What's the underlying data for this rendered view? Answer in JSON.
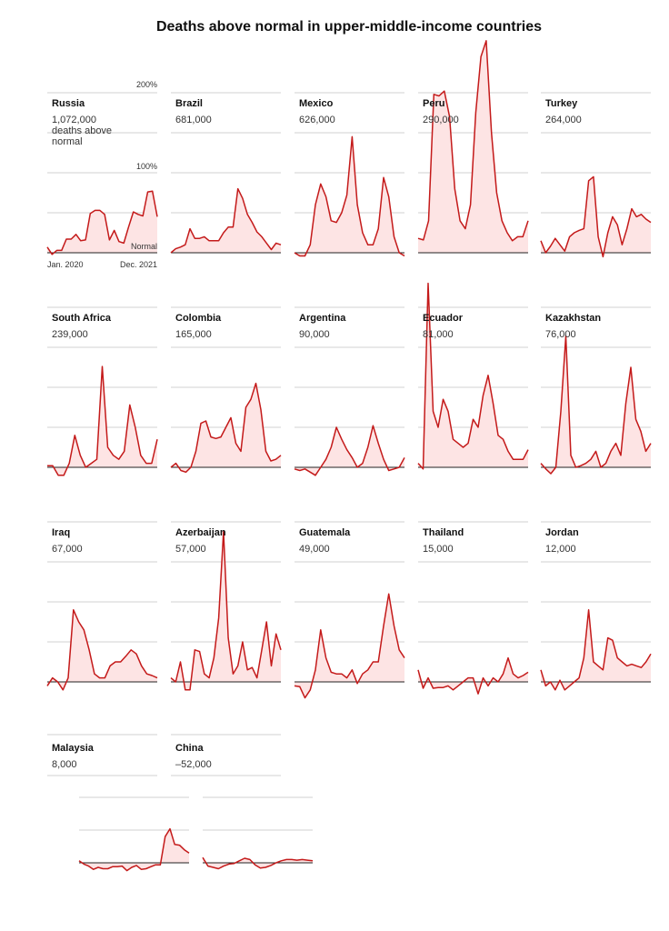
{
  "chart_data": {
    "type": "area",
    "title": "Deaths above normal in upper-middle-income countries",
    "xlabel": "",
    "ylabel": "Deaths above normal (%)",
    "x_range": [
      "Jan. 2020",
      "Dec. 2021"
    ],
    "ylim": [
      0,
      200
    ],
    "y_ticks": [
      0,
      50,
      100,
      150,
      200
    ],
    "grid": true,
    "annotations": {
      "y_top": "200%",
      "y_mid": "100%",
      "normal": "Normal",
      "x_start": "Jan. 2020",
      "x_end": "Dec. 2021",
      "unit_line1": "deaths above",
      "unit_line2": "normal"
    },
    "series": [
      {
        "name": "Russia",
        "total": "1,072,000",
        "values": [
          7,
          -2,
          3,
          3,
          17,
          17,
          23,
          15,
          16,
          49,
          53,
          53,
          48,
          16,
          28,
          14,
          12,
          32,
          51,
          48,
          46,
          76,
          77,
          45
        ]
      },
      {
        "name": "Brazil",
        "total": "681,000",
        "values": [
          0,
          5,
          7,
          10,
          30,
          18,
          18,
          20,
          15,
          15,
          15,
          25,
          32,
          32,
          80,
          68,
          48,
          38,
          26,
          20,
          12,
          4,
          12,
          10
        ]
      },
      {
        "name": "Mexico",
        "total": "626,000",
        "values": [
          0,
          -4,
          -4,
          10,
          60,
          86,
          70,
          40,
          38,
          50,
          72,
          145,
          60,
          25,
          10,
          10,
          30,
          94,
          70,
          20,
          0,
          -4
        ]
      },
      {
        "name": "Peru",
        "total": "290,000",
        "values": [
          18,
          16,
          40,
          198,
          196,
          202,
          170,
          80,
          40,
          30,
          60,
          175,
          245,
          265,
          150,
          75,
          40,
          25,
          15,
          20,
          20,
          40
        ]
      },
      {
        "name": "Turkey",
        "total": "264,000",
        "values": [
          15,
          0,
          8,
          18,
          10,
          2,
          20,
          25,
          28,
          30,
          90,
          95,
          20,
          -5,
          25,
          45,
          35,
          10,
          30,
          55,
          45,
          48,
          42,
          38
        ]
      },
      {
        "name": "South Africa",
        "total": "239,000",
        "values": [
          2,
          2,
          -10,
          -10,
          5,
          40,
          15,
          0,
          5,
          10,
          126,
          25,
          15,
          10,
          20,
          78,
          50,
          15,
          5,
          5,
          35
        ]
      },
      {
        "name": "Colombia",
        "total": "165,000",
        "values": [
          0,
          5,
          -4,
          -6,
          0,
          20,
          55,
          58,
          38,
          36,
          38,
          50,
          62,
          30,
          20,
          75,
          85,
          105,
          72,
          20,
          8,
          10,
          15
        ]
      },
      {
        "name": "Argentina",
        "total": "90,000",
        "values": [
          -2,
          -4,
          -2,
          -6,
          -10,
          0,
          10,
          25,
          50,
          35,
          22,
          12,
          0,
          5,
          25,
          52,
          30,
          10,
          -4,
          -2,
          0,
          12
        ]
      },
      {
        "name": "Ecuador",
        "total": "81,000",
        "values": [
          5,
          -2,
          230,
          70,
          50,
          85,
          70,
          35,
          30,
          25,
          30,
          60,
          50,
          90,
          115,
          80,
          40,
          35,
          20,
          10,
          10,
          10,
          22
        ]
      },
      {
        "name": "Kazakhstan",
        "total": "76,000",
        "values": [
          5,
          -2,
          -8,
          0,
          70,
          164,
          15,
          0,
          2,
          5,
          10,
          20,
          0,
          5,
          20,
          30,
          15,
          80,
          125,
          60,
          45,
          20,
          30
        ]
      },
      {
        "name": "Iraq",
        "total": "67,000",
        "values": [
          -5,
          5,
          0,
          -10,
          5,
          90,
          75,
          65,
          40,
          10,
          5,
          5,
          20,
          25,
          25,
          32,
          40,
          35,
          20,
          10,
          8,
          5
        ]
      },
      {
        "name": "Azerbaijan",
        "total": "57,000",
        "values": [
          5,
          0,
          25,
          -10,
          -10,
          40,
          38,
          10,
          5,
          30,
          80,
          188,
          55,
          10,
          20,
          50,
          15,
          18,
          5,
          40,
          75,
          20,
          60,
          40
        ]
      },
      {
        "name": "Guatemala",
        "total": "49,000",
        "values": [
          -5,
          -6,
          -20,
          -10,
          15,
          65,
          30,
          12,
          10,
          10,
          5,
          15,
          -2,
          10,
          15,
          25,
          25,
          70,
          110,
          70,
          40,
          30
        ]
      },
      {
        "name": "Thailand",
        "total": "15,000",
        "values": [
          15,
          -8,
          5,
          -8,
          -7,
          -7,
          -5,
          -10,
          -5,
          0,
          5,
          5,
          -15,
          5,
          -5,
          5,
          0,
          10,
          30,
          10,
          5,
          8,
          12
        ]
      },
      {
        "name": "Jordan",
        "total": "12,000",
        "values": [
          15,
          -5,
          0,
          -10,
          2,
          -10,
          -5,
          0,
          5,
          30,
          90,
          25,
          20,
          15,
          55,
          52,
          30,
          25,
          20,
          22,
          20,
          18,
          25,
          35
        ]
      },
      {
        "name": "Malaysia",
        "total": "8,000",
        "values": [
          3,
          -2,
          -5,
          -10,
          -7,
          -9,
          -9,
          -6,
          -6,
          -5,
          -12,
          -7,
          -4,
          -10,
          -9,
          -6,
          -3,
          -3,
          40,
          52,
          28,
          27,
          20,
          15
        ]
      },
      {
        "name": "China",
        "total": "–52,000",
        "values": [
          8,
          -5,
          -7,
          -9,
          -5,
          -2,
          -1,
          3,
          7,
          5,
          -3,
          -8,
          -7,
          -4,
          0,
          3,
          5,
          5,
          4,
          5,
          4,
          3
        ]
      }
    ],
    "colors": {
      "line": "#c41a1a",
      "fill": "#fde4e4",
      "grid": "#d0d0d0",
      "baseline": "#222222"
    }
  }
}
